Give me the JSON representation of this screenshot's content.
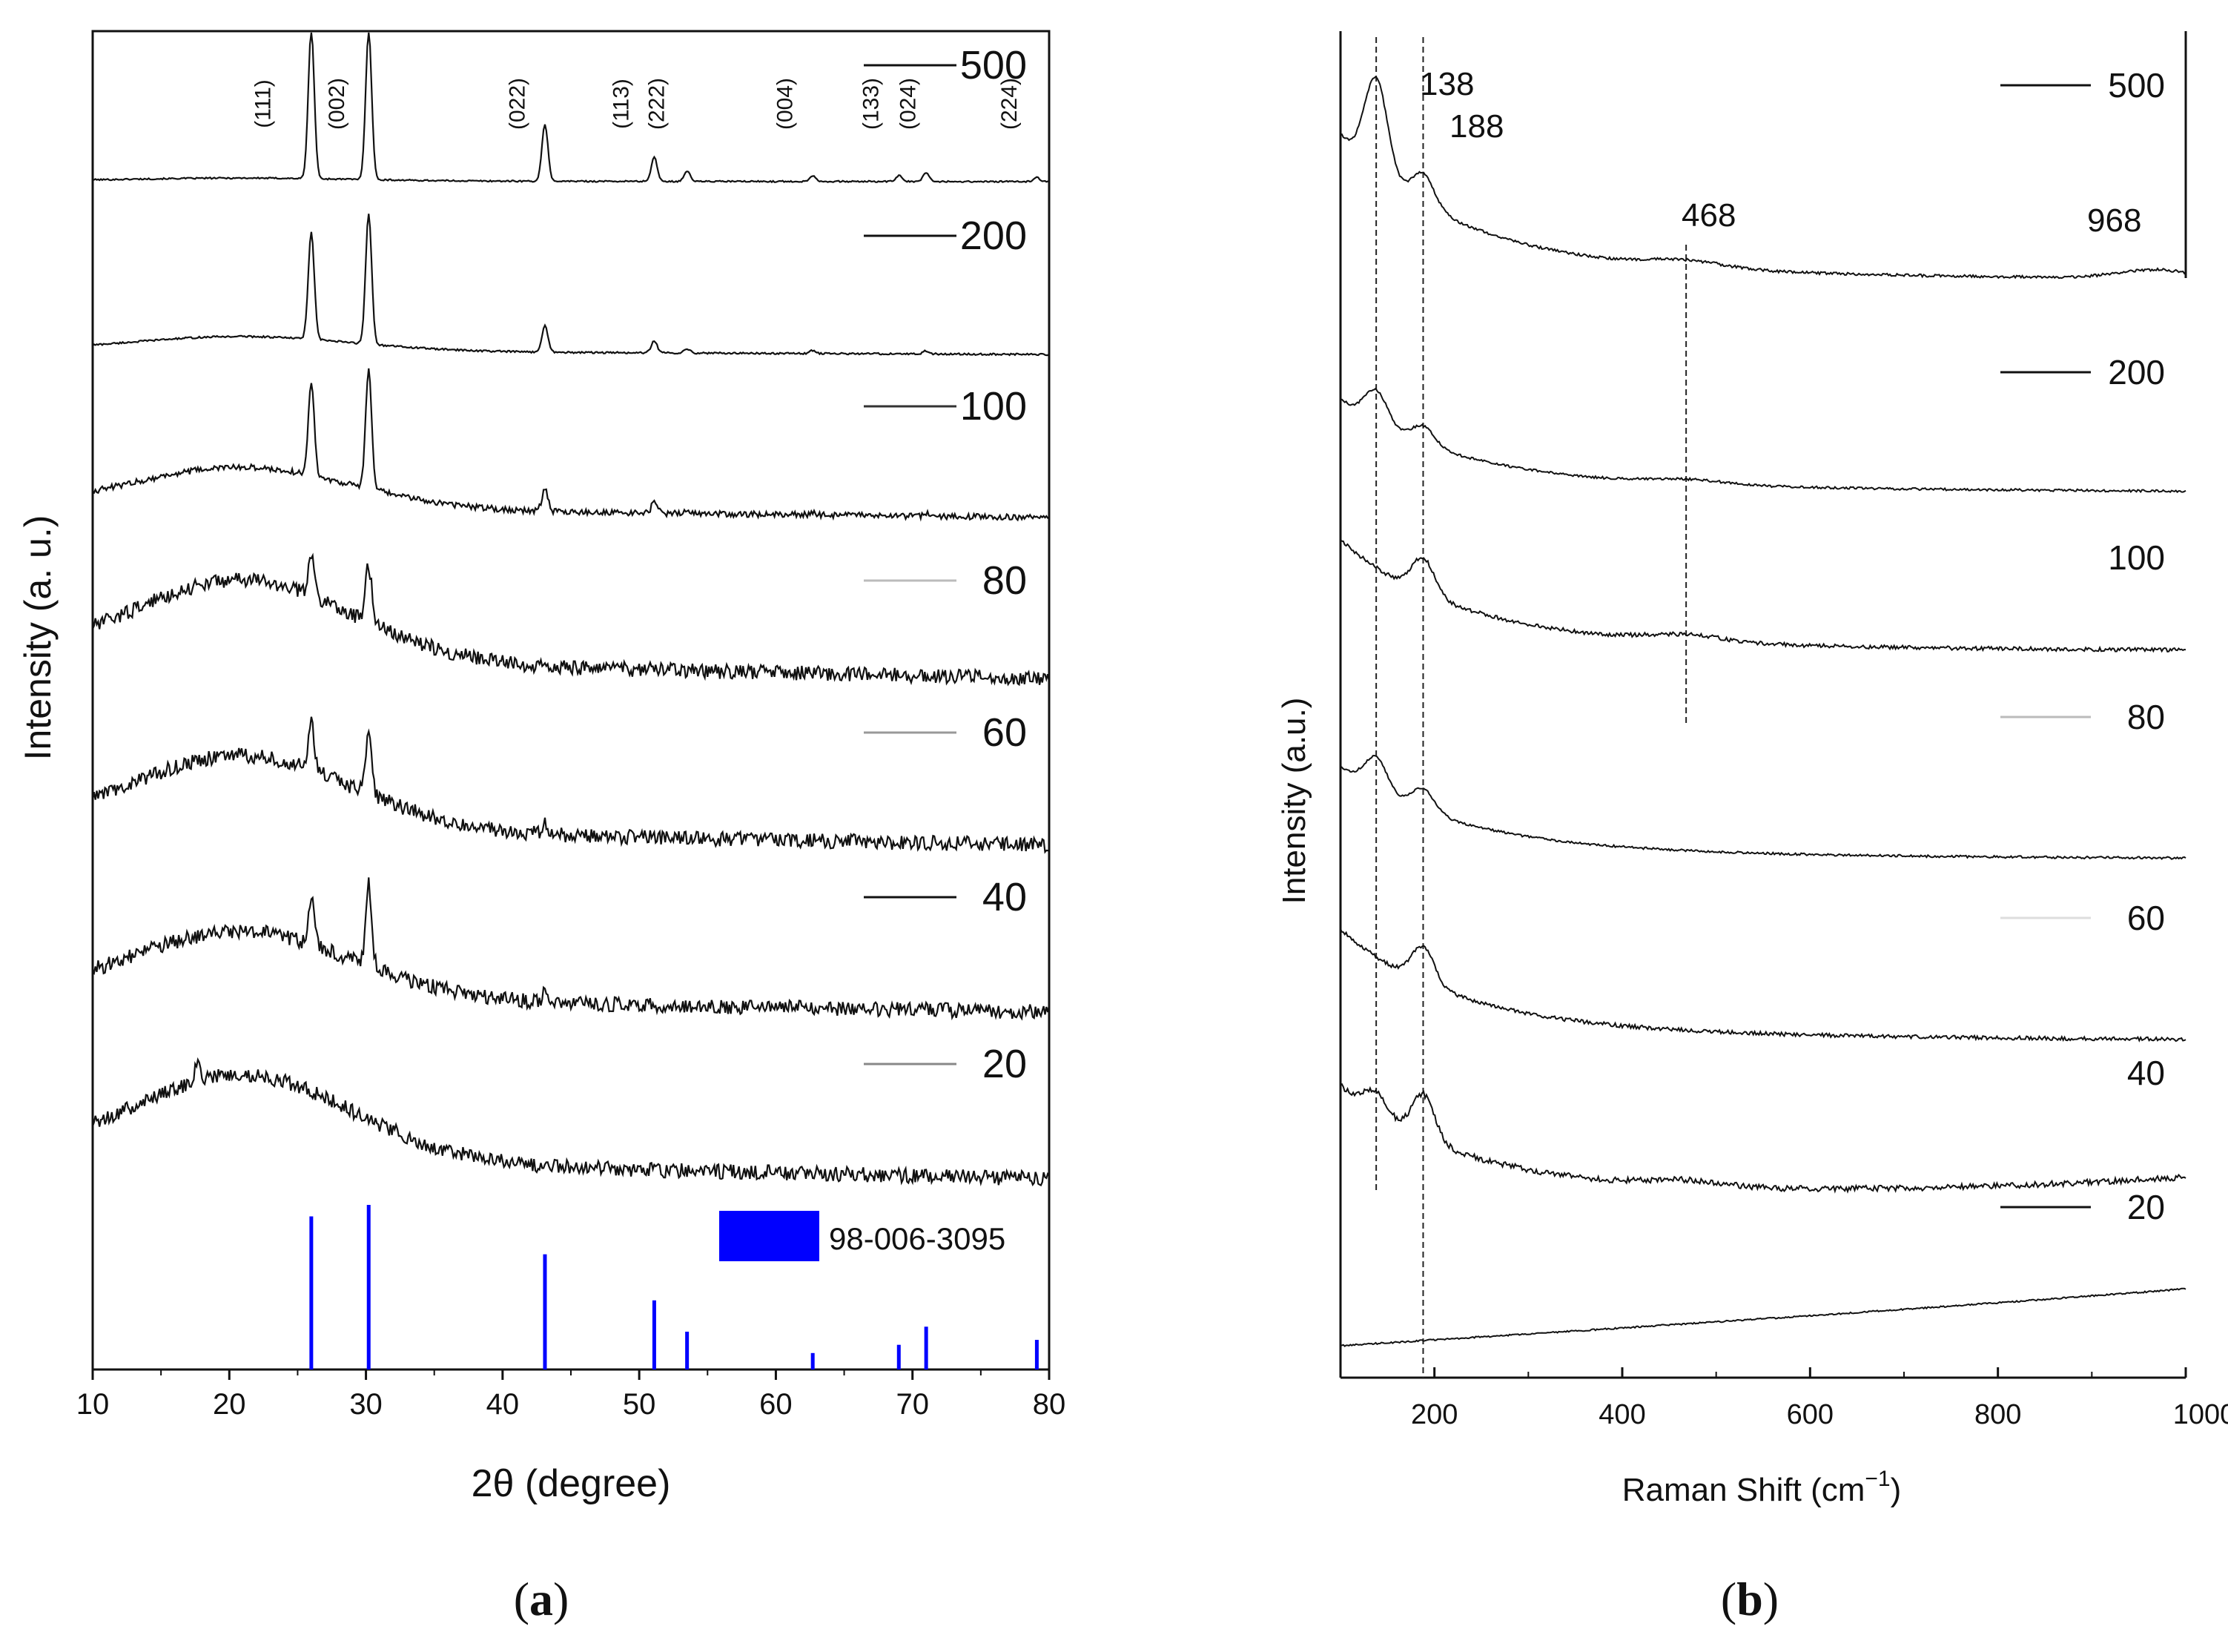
{
  "chart_data": [
    {
      "panel_label": "a",
      "type": "line",
      "xlabel": "2θ (degree)",
      "ylabel": "Intensity (a. u.)",
      "xlim": [
        10,
        80
      ],
      "xticks": [
        10,
        20,
        30,
        40,
        50,
        60,
        70,
        80
      ],
      "series": [
        {
          "name": "500",
          "peaks": [
            [
              26.0,
              1.0
            ],
            [
              30.2,
              1.0
            ],
            [
              43.1,
              0.38
            ],
            [
              51.1,
              0.16
            ],
            [
              53.5,
              0.07
            ],
            [
              62.7,
              0.04
            ],
            [
              69.0,
              0.04
            ],
            [
              71.0,
              0.06
            ],
            [
              79.1,
              0.03
            ]
          ],
          "hump": 0.02,
          "noise": 0.005
        },
        {
          "name": "200",
          "peaks": [
            [
              26.0,
              0.72
            ],
            [
              30.2,
              0.88
            ],
            [
              43.1,
              0.18
            ],
            [
              51.1,
              0.08
            ],
            [
              53.5,
              0.03
            ],
            [
              62.7,
              0.02
            ],
            [
              71.0,
              0.02
            ]
          ],
          "hump": 0.1,
          "noise": 0.006
        },
        {
          "name": "100",
          "peaks": [
            [
              26.0,
              0.62
            ],
            [
              30.2,
              0.8
            ],
            [
              43.1,
              0.15
            ],
            [
              51.1,
              0.07
            ],
            [
              53.5,
              0.03
            ],
            [
              62.7,
              0.02
            ],
            [
              71.0,
              0.02
            ]
          ],
          "hump": 0.28,
          "noise": 0.02
        },
        {
          "name": "80",
          "peaks": [
            [
              26.0,
              0.28
            ],
            [
              30.2,
              0.38
            ],
            [
              43.1,
              0.05
            ]
          ],
          "hump": 0.55,
          "noise": 0.05
        },
        {
          "name": "60",
          "peaks": [
            [
              26.0,
              0.32
            ],
            [
              30.2,
              0.42
            ],
            [
              43.1,
              0.06
            ]
          ],
          "hump": 0.5,
          "noise": 0.05
        },
        {
          "name": "40",
          "peaks": [
            [
              26.0,
              0.3
            ],
            [
              30.2,
              0.56
            ],
            [
              43.1,
              0.06
            ]
          ],
          "hump": 0.45,
          "noise": 0.05
        },
        {
          "name": "20",
          "peaks": [
            [
              17.7,
              0.14
            ]
          ],
          "hump": 0.58,
          "noise": 0.05
        }
      ],
      "annotations": [
        {
          "text": "(111)",
          "x": 23.0
        },
        {
          "text": "(002)",
          "x": 28.4
        },
        {
          "text": "(022)",
          "x": 41.6
        },
        {
          "text": "(113)",
          "x": 49.2
        },
        {
          "text": "(222)",
          "x": 51.8
        },
        {
          "text": "(004)",
          "x": 61.2
        },
        {
          "text": "(133)",
          "x": 67.5
        },
        {
          "text": "(024)",
          "x": 70.2
        },
        {
          "text": "(224)",
          "x": 77.6
        }
      ],
      "reference": {
        "label": "98-006-3095",
        "color": "#0000ff",
        "lines": [
          [
            26.0,
            0.93
          ],
          [
            30.2,
            1.0
          ],
          [
            43.1,
            0.7
          ],
          [
            51.1,
            0.42
          ],
          [
            53.5,
            0.23
          ],
          [
            62.7,
            0.1
          ],
          [
            69.0,
            0.15
          ],
          [
            71.0,
            0.26
          ],
          [
            79.1,
            0.18
          ]
        ]
      }
    },
    {
      "panel_label": "b",
      "type": "line",
      "xlabel": "Raman Shift (cm",
      "xlabel_sup": "−1",
      "xlabel_end": ")",
      "ylabel": "Intensity (a.u.)",
      "xlim": [
        100,
        1000
      ],
      "xticks": [
        200,
        400,
        600,
        800,
        1000
      ],
      "peak_labels": [
        {
          "text": "138",
          "x": 138
        },
        {
          "text": "188",
          "x": 188
        },
        {
          "text": "468",
          "x": 468
        },
        {
          "text": "968",
          "x": 968
        }
      ],
      "reference_lines": [
        138,
        188,
        468
      ],
      "series": [
        {
          "name": "500",
          "peaks": [
            [
              138,
              0.55
            ],
            [
              188,
              0.18
            ],
            [
              468,
              0.04
            ],
            [
              968,
              0.05
            ]
          ],
          "decay": 0.75,
          "noise": 0.008
        },
        {
          "name": "200",
          "peaks": [
            [
              138,
              0.22
            ],
            [
              188,
              0.12
            ],
            [
              468,
              0.03
            ]
          ],
          "decay": 0.55,
          "noise": 0.008
        },
        {
          "name": "100",
          "peaks": [
            [
              188,
              0.22
            ],
            [
              468,
              0.04
            ]
          ],
          "decay": 0.6,
          "noise": 0.012
        },
        {
          "name": "80",
          "peaks": [
            [
              138,
              0.22
            ],
            [
              188,
              0.15
            ]
          ],
          "decay": 0.55,
          "noise": 0.008
        },
        {
          "name": "60",
          "peaks": [
            [
              188,
              0.22
            ]
          ],
          "decay": 0.6,
          "noise": 0.012
        },
        {
          "name": "40",
          "peaks": [
            [
              138,
              0.15
            ],
            [
              188,
              0.3
            ],
            [
              468,
              0.04
            ]
          ],
          "decay": 0.65,
          "noise": 0.02
        },
        {
          "name": "20",
          "peaks": [],
          "decay": 0.0,
          "noise": 0.008
        }
      ]
    }
  ]
}
